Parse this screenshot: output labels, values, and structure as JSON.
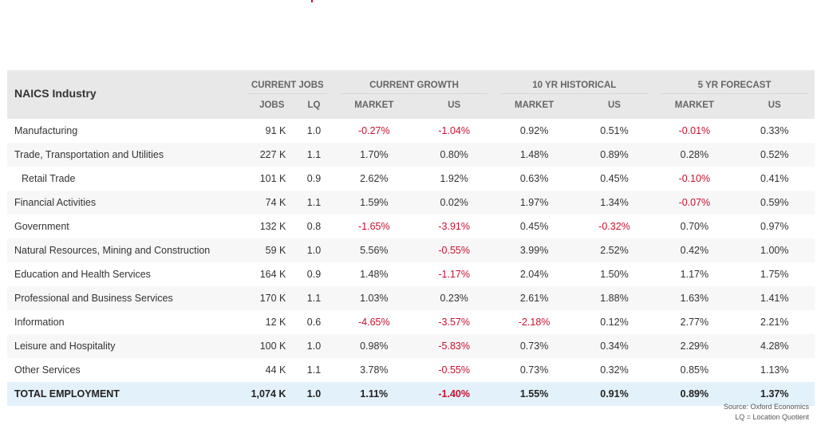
{
  "table": {
    "industry_header": "NAICS Industry",
    "groups": [
      "CURRENT JOBS",
      "CURRENT GROWTH",
      "10 YR HISTORICAL",
      "5 YR FORECAST"
    ],
    "subheaders": [
      "JOBS",
      "LQ",
      "MARKET",
      "US",
      "MARKET",
      "US",
      "MARKET",
      "US"
    ],
    "rows": [
      {
        "name": "Manufacturing",
        "jobs": "91 K",
        "lq": "1.0",
        "cg_market": "-0.27%",
        "cg_us": "-1.04%",
        "h_market": "0.92%",
        "h_us": "0.51%",
        "f_market": "-0.01%",
        "f_us": "0.33%"
      },
      {
        "name": "Trade, Transportation and Utilities",
        "jobs": "227 K",
        "lq": "1.1",
        "cg_market": "1.70%",
        "cg_us": "0.80%",
        "h_market": "1.48%",
        "h_us": "0.89%",
        "f_market": "0.28%",
        "f_us": "0.52%"
      },
      {
        "name": "Retail Trade",
        "jobs": "101 K",
        "lq": "0.9",
        "cg_market": "2.62%",
        "cg_us": "1.92%",
        "h_market": "0.63%",
        "h_us": "0.45%",
        "f_market": "-0.10%",
        "f_us": "0.41%",
        "indent": true
      },
      {
        "name": "Financial Activities",
        "jobs": "74 K",
        "lq": "1.1",
        "cg_market": "1.59%",
        "cg_us": "0.02%",
        "h_market": "1.97%",
        "h_us": "1.34%",
        "f_market": "-0.07%",
        "f_us": "0.59%"
      },
      {
        "name": "Government",
        "jobs": "132 K",
        "lq": "0.8",
        "cg_market": "-1.65%",
        "cg_us": "-3.91%",
        "h_market": "0.45%",
        "h_us": "-0.32%",
        "f_market": "0.70%",
        "f_us": "0.97%"
      },
      {
        "name": "Natural Resources, Mining and Construction",
        "jobs": "59 K",
        "lq": "1.0",
        "cg_market": "5.56%",
        "cg_us": "-0.55%",
        "h_market": "3.99%",
        "h_us": "2.52%",
        "f_market": "0.42%",
        "f_us": "1.00%"
      },
      {
        "name": "Education and Health Services",
        "jobs": "164 K",
        "lq": "0.9",
        "cg_market": "1.48%",
        "cg_us": "-1.17%",
        "h_market": "2.04%",
        "h_us": "1.50%",
        "f_market": "1.17%",
        "f_us": "1.75%"
      },
      {
        "name": "Professional and Business Services",
        "jobs": "170 K",
        "lq": "1.1",
        "cg_market": "1.03%",
        "cg_us": "0.23%",
        "h_market": "2.61%",
        "h_us": "1.88%",
        "f_market": "1.63%",
        "f_us": "1.41%"
      },
      {
        "name": "Information",
        "jobs": "12 K",
        "lq": "0.6",
        "cg_market": "-4.65%",
        "cg_us": "-3.57%",
        "h_market": "-2.18%",
        "h_us": "0.12%",
        "f_market": "2.77%",
        "f_us": "2.21%"
      },
      {
        "name": "Leisure and Hospitality",
        "jobs": "100 K",
        "lq": "1.0",
        "cg_market": "0.98%",
        "cg_us": "-5.83%",
        "h_market": "0.73%",
        "h_us": "0.34%",
        "f_market": "2.29%",
        "f_us": "4.28%"
      },
      {
        "name": "Other Services",
        "jobs": "44 K",
        "lq": "1.1",
        "cg_market": "3.78%",
        "cg_us": "-0.55%",
        "h_market": "0.73%",
        "h_us": "0.32%",
        "f_market": "0.85%",
        "f_us": "1.13%"
      }
    ],
    "total": {
      "name": "TOTAL EMPLOYMENT",
      "jobs": "1,074 K",
      "lq": "1.0",
      "cg_market": "1.11%",
      "cg_us": "-1.40%",
      "h_market": "1.55%",
      "h_us": "0.91%",
      "f_market": "0.89%",
      "f_us": "1.37%"
    }
  },
  "footer": {
    "source": "Source: Oxford Economics",
    "lq_note": "LQ = Location Quotient"
  },
  "colors": {
    "negative": "#c8102e",
    "header_bg": "#e8e8e8",
    "total_bg": "#e3f1fa"
  }
}
